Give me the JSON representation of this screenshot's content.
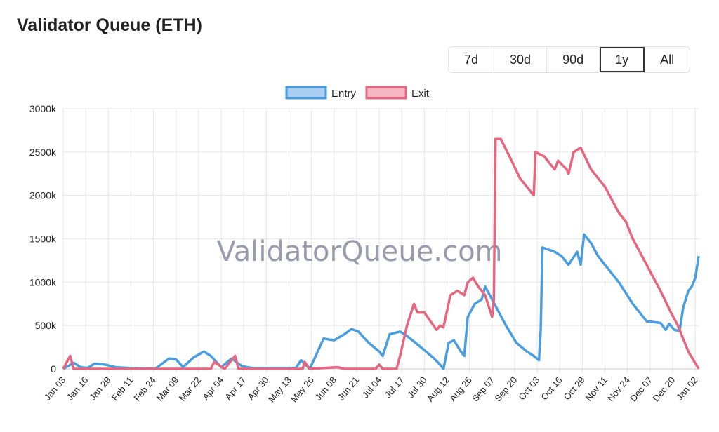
{
  "title": "Validator Queue (ETH)",
  "range_buttons": [
    {
      "label": "7d",
      "active": false
    },
    {
      "label": "30d",
      "active": false
    },
    {
      "label": "90d",
      "active": false
    },
    {
      "label": "1y",
      "active": true
    },
    {
      "label": "All",
      "active": false
    }
  ],
  "watermark": "ValidatorQueue.com",
  "chart_data": {
    "type": "line",
    "title": "Validator Queue (ETH)",
    "xlabel": "",
    "ylabel": "",
    "x_unit": "days since Jan 03",
    "xlim": [
      0,
      366
    ],
    "ylim": [
      0,
      3000
    ],
    "y_ticks": [
      0,
      500,
      1000,
      1500,
      2000,
      2500,
      3000
    ],
    "y_tick_labels": [
      "0",
      "500k",
      "1000k",
      "1500k",
      "2000k",
      "2500k",
      "3000k"
    ],
    "x_tick_labels": [
      "Jan 03",
      "Jan 16",
      "Jan 29",
      "Feb 11",
      "Feb 24",
      "Mar 09",
      "Mar 22",
      "Apr 04",
      "Apr 17",
      "Apr 30",
      "May 13",
      "May 26",
      "Jun 08",
      "Jun 21",
      "Jul 04",
      "Jul 17",
      "Jul 30",
      "Aug 12",
      "Aug 25",
      "Sep 07",
      "Sep 20",
      "Oct 03",
      "Oct 16",
      "Oct 29",
      "Nov 11",
      "Nov 24",
      "Dec 07",
      "Dec 20",
      "Jan 02"
    ],
    "x_tick_step_days": 13,
    "grid": true,
    "legend": "top-center",
    "series": [
      {
        "name": "Entry",
        "color": "#4a9ee0",
        "fill": "#a9cff3",
        "points": [
          [
            0,
            0
          ],
          [
            6,
            70
          ],
          [
            10,
            20
          ],
          [
            14,
            10
          ],
          [
            18,
            60
          ],
          [
            24,
            50
          ],
          [
            30,
            20
          ],
          [
            38,
            10
          ],
          [
            53,
            0
          ],
          [
            61,
            120
          ],
          [
            65,
            110
          ],
          [
            69,
            20
          ],
          [
            75,
            130
          ],
          [
            81,
            200
          ],
          [
            85,
            150
          ],
          [
            91,
            20
          ],
          [
            97,
            120
          ],
          [
            103,
            30
          ],
          [
            109,
            10
          ],
          [
            117,
            10
          ],
          [
            134,
            10
          ],
          [
            137,
            100
          ],
          [
            142,
            0
          ],
          [
            150,
            350
          ],
          [
            156,
            330
          ],
          [
            162,
            400
          ],
          [
            166,
            460
          ],
          [
            170,
            430
          ],
          [
            176,
            300
          ],
          [
            182,
            200
          ],
          [
            184,
            150
          ],
          [
            188,
            400
          ],
          [
            194,
            430
          ],
          [
            198,
            380
          ],
          [
            206,
            250
          ],
          [
            213,
            130
          ],
          [
            217,
            50
          ],
          [
            219,
            0
          ],
          [
            222,
            300
          ],
          [
            225,
            330
          ],
          [
            229,
            200
          ],
          [
            231,
            150
          ],
          [
            233,
            600
          ],
          [
            237,
            750
          ],
          [
            241,
            800
          ],
          [
            243,
            950
          ],
          [
            247,
            800
          ],
          [
            255,
            500
          ],
          [
            261,
            300
          ],
          [
            267,
            200
          ],
          [
            271,
            150
          ],
          [
            274,
            100
          ],
          [
            275,
            450
          ],
          [
            276,
            1400
          ],
          [
            283,
            1350
          ],
          [
            287,
            1300
          ],
          [
            291,
            1200
          ],
          [
            296,
            1350
          ],
          [
            298,
            1200
          ],
          [
            300,
            1550
          ],
          [
            304,
            1450
          ],
          [
            308,
            1300
          ],
          [
            314,
            1150
          ],
          [
            320,
            1000
          ],
          [
            328,
            750
          ],
          [
            334,
            600
          ],
          [
            336,
            550
          ],
          [
            344,
            530
          ],
          [
            347,
            450
          ],
          [
            349,
            520
          ],
          [
            352,
            450
          ],
          [
            355,
            440
          ],
          [
            357,
            700
          ],
          [
            360,
            900
          ],
          [
            362,
            950
          ],
          [
            364,
            1050
          ],
          [
            366,
            1300
          ]
        ]
      },
      {
        "name": "Exit",
        "color": "#e8657f",
        "fill": "#f7b6c4",
        "points": [
          [
            0,
            0
          ],
          [
            4,
            150
          ],
          [
            6,
            0
          ],
          [
            85,
            0
          ],
          [
            87,
            80
          ],
          [
            93,
            0
          ],
          [
            99,
            150
          ],
          [
            101,
            0
          ],
          [
            138,
            0
          ],
          [
            139,
            80
          ],
          [
            142,
            0
          ],
          [
            158,
            20
          ],
          [
            162,
            0
          ],
          [
            180,
            0
          ],
          [
            182,
            50
          ],
          [
            184,
            0
          ],
          [
            192,
            0
          ],
          [
            194,
            150
          ],
          [
            198,
            500
          ],
          [
            202,
            750
          ],
          [
            204,
            650
          ],
          [
            208,
            650
          ],
          [
            215,
            450
          ],
          [
            217,
            500
          ],
          [
            219,
            480
          ],
          [
            223,
            850
          ],
          [
            227,
            900
          ],
          [
            231,
            850
          ],
          [
            233,
            1000
          ],
          [
            236,
            1050
          ],
          [
            239,
            950
          ],
          [
            243,
            850
          ],
          [
            247,
            600
          ],
          [
            248,
            800
          ],
          [
            249,
            2650
          ],
          [
            252,
            2650
          ],
          [
            257,
            2450
          ],
          [
            263,
            2200
          ],
          [
            271,
            2000
          ],
          [
            272,
            2500
          ],
          [
            277,
            2450
          ],
          [
            283,
            2300
          ],
          [
            285,
            2400
          ],
          [
            290,
            2300
          ],
          [
            291,
            2250
          ],
          [
            294,
            2500
          ],
          [
            298,
            2550
          ],
          [
            304,
            2300
          ],
          [
            312,
            2100
          ],
          [
            320,
            1800
          ],
          [
            324,
            1700
          ],
          [
            328,
            1500
          ],
          [
            336,
            1200
          ],
          [
            344,
            900
          ],
          [
            350,
            650
          ],
          [
            354,
            500
          ],
          [
            360,
            200
          ],
          [
            366,
            0
          ]
        ]
      }
    ]
  }
}
